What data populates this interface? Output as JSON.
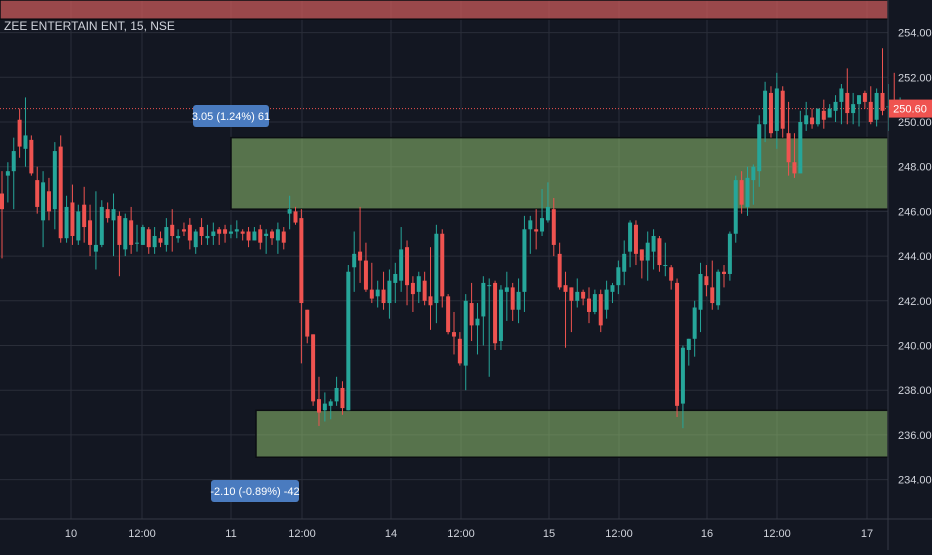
{
  "header": {
    "symbol_title": "ZEE ENTERTAIN ENT, 15, NSE"
  },
  "annotations": {
    "upper_measure": "3.05 (1.24%) 61",
    "lower_measure": "-2.10 (-0.89%) -42"
  },
  "colors": {
    "background": "#131722",
    "grid": "#2a2e39",
    "up_candle": "#26a69a",
    "down_candle": "#ef5350",
    "zone_fill": "#8fbf6f",
    "top_zone_fill": "#c85a5a",
    "measure_label_bg": "#4a7bbf",
    "price_line": "#ef5350",
    "axis_text": "#d1d4dc"
  },
  "chart_data": {
    "type": "candlestick",
    "title": "ZEE ENTERTAIN ENT, 15, NSE",
    "interval": "15",
    "exchange": "NSE",
    "xlabel": "",
    "ylabel": "",
    "ylim": [
      233.0,
      255.0
    ],
    "y_ticks": [
      "234.00",
      "236.00",
      "238.00",
      "240.00",
      "242.00",
      "244.00",
      "246.00",
      "248.00",
      "250.00",
      "252.00",
      "254.00"
    ],
    "x_ticks": [
      "10",
      "12:00",
      "11",
      "12:00",
      "14",
      "12:00",
      "15",
      "12:00",
      "16",
      "12:00",
      "17"
    ],
    "last_price": "250.60",
    "grid": true,
    "zones": [
      {
        "name": "supply-zone",
        "from": 246.1,
        "to": 249.3
      },
      {
        "name": "demand-zone",
        "from": 235.0,
        "to": 237.1
      },
      {
        "name": "top-zone",
        "from": 254.6,
        "to": 256.0
      }
    ],
    "measures": [
      {
        "label": "3.05 (1.24%) 61",
        "high": 249.25,
        "low": 246.2
      },
      {
        "label": "-2.10 (-0.89%) -42",
        "high": 237.1,
        "low": 235.0
      }
    ],
    "candles": [
      [
        246.8,
        247.8,
        243.9,
        246.1
      ],
      [
        247.6,
        248.2,
        246.4,
        247.8
      ],
      [
        247.8,
        249.3,
        246.1,
        248.7
      ],
      [
        250.1,
        250.6,
        248.4,
        248.9
      ],
      [
        248.8,
        251.1,
        248.0,
        249.4
      ],
      [
        249.2,
        249.4,
        247.6,
        247.7
      ],
      [
        247.4,
        248.0,
        245.9,
        246.2
      ],
      [
        245.6,
        247.8,
        244.4,
        247.3
      ],
      [
        246.9,
        247.5,
        245.6,
        246.0
      ],
      [
        246.1,
        249.1,
        245.2,
        248.7
      ],
      [
        248.9,
        249.4,
        244.6,
        244.8
      ],
      [
        244.8,
        246.7,
        244.6,
        246.2
      ],
      [
        246.4,
        247.2,
        244.5,
        244.9
      ],
      [
        244.7,
        246.3,
        244.5,
        246.0
      ],
      [
        246.3,
        247.1,
        244.6,
        245.3
      ],
      [
        245.6,
        246.3,
        244.0,
        244.5
      ],
      [
        244.2,
        246.9,
        243.4,
        244.5
      ],
      [
        244.5,
        246.5,
        244.4,
        246.2
      ],
      [
        246.1,
        246.4,
        245.5,
        245.7
      ],
      [
        245.6,
        246.8,
        244.0,
        246.1
      ],
      [
        245.8,
        246.0,
        243.1,
        244.5
      ],
      [
        244.3,
        245.9,
        244.0,
        245.7
      ],
      [
        245.6,
        246.2,
        244.1,
        244.5
      ],
      [
        244.6,
        245.4,
        244.2,
        244.6
      ],
      [
        244.5,
        245.4,
        244.5,
        245.3
      ],
      [
        245.2,
        245.3,
        244.1,
        244.4
      ],
      [
        244.4,
        245.3,
        244.1,
        244.9
      ],
      [
        244.8,
        245.1,
        244.4,
        244.6
      ],
      [
        244.5,
        245.7,
        244.2,
        245.3
      ],
      [
        245.4,
        246.1,
        244.2,
        244.9
      ],
      [
        244.8,
        245.2,
        244.6,
        244.9
      ],
      [
        245.2,
        245.5,
        244.9,
        245.1
      ],
      [
        245.4,
        245.7,
        244.3,
        244.7
      ],
      [
        244.4,
        245.2,
        244.1,
        245.1
      ],
      [
        245.3,
        245.7,
        244.5,
        244.9
      ],
      [
        244.8,
        245.4,
        244.5,
        244.9
      ],
      [
        244.9,
        245.5,
        244.5,
        245.1
      ],
      [
        245.2,
        245.3,
        244.5,
        245.0
      ],
      [
        245.2,
        245.4,
        244.6,
        245.0
      ],
      [
        245.0,
        245.4,
        244.8,
        245.1
      ],
      [
        245.1,
        245.6,
        244.8,
        245.2
      ],
      [
        245.1,
        245.2,
        244.7,
        245.0
      ],
      [
        245.1,
        245.3,
        244.4,
        244.7
      ],
      [
        244.7,
        245.3,
        244.7,
        245.1
      ],
      [
        245.2,
        245.4,
        244.3,
        244.6
      ],
      [
        244.9,
        245.2,
        244.1,
        245.0
      ],
      [
        245.1,
        245.2,
        244.5,
        244.8
      ],
      [
        244.7,
        245.5,
        244.1,
        245.2
      ],
      [
        245.1,
        245.3,
        244.3,
        244.6
      ],
      [
        245.9,
        246.7,
        245.2,
        246.1
      ],
      [
        246.0,
        246.2,
        245.4,
        245.5
      ],
      [
        245.7,
        246.1,
        239.2,
        241.9
      ],
      [
        241.6,
        241.6,
        240.1,
        240.4
      ],
      [
        240.5,
        240.5,
        237.3,
        237.5
      ],
      [
        237.6,
        238.6,
        236.4,
        237.0
      ],
      [
        237.1,
        237.9,
        236.6,
        237.4
      ],
      [
        237.3,
        237.6,
        236.7,
        237.5
      ],
      [
        237.5,
        238.6,
        237.3,
        238.1
      ],
      [
        238.1,
        238.4,
        236.9,
        237.2
      ],
      [
        237.1,
        243.6,
        237.1,
        243.3
      ],
      [
        243.5,
        245.1,
        242.4,
        244.1
      ],
      [
        244.2,
        246.2,
        242.8,
        243.8
      ],
      [
        243.8,
        244.6,
        242.4,
        242.5
      ],
      [
        242.5,
        243.7,
        241.9,
        242.1
      ],
      [
        242.2,
        242.9,
        241.7,
        242.5
      ],
      [
        242.5,
        243.3,
        241.6,
        241.9
      ],
      [
        241.9,
        243.4,
        241.2,
        242.9
      ],
      [
        242.8,
        243.7,
        241.9,
        243.2
      ],
      [
        242.9,
        245.3,
        242.4,
        244.3
      ],
      [
        244.4,
        244.7,
        241.8,
        242.7
      ],
      [
        242.8,
        243.1,
        241.5,
        242.3
      ],
      [
        242.4,
        243.3,
        241.9,
        243.1
      ],
      [
        242.9,
        243.3,
        241.8,
        242.0
      ],
      [
        242.2,
        244.4,
        240.7,
        241.8
      ],
      [
        241.9,
        245.4,
        241.0,
        245.0
      ],
      [
        245.0,
        245.2,
        241.7,
        242.2
      ],
      [
        242.2,
        242.3,
        240.5,
        240.6
      ],
      [
        240.6,
        241.5,
        239.6,
        240.4
      ],
      [
        240.3,
        240.6,
        239.1,
        239.2
      ],
      [
        239.1,
        242.3,
        238.0,
        242.0
      ],
      [
        241.9,
        242.8,
        240.2,
        240.9
      ],
      [
        240.9,
        241.9,
        239.6,
        241.2
      ],
      [
        241.3,
        243.1,
        240.0,
        242.8
      ],
      [
        242.7,
        243.0,
        238.6,
        242.7
      ],
      [
        242.8,
        242.9,
        239.8,
        240.1
      ],
      [
        240.2,
        242.7,
        239.8,
        242.5
      ],
      [
        242.4,
        243.3,
        241.1,
        242.6
      ],
      [
        242.6,
        242.8,
        241.1,
        241.6
      ],
      [
        241.6,
        243.0,
        241.0,
        242.4
      ],
      [
        242.4,
        245.8,
        241.5,
        245.2
      ],
      [
        245.2,
        245.8,
        244.1,
        245.6
      ],
      [
        245.2,
        246.1,
        244.3,
        245.1
      ],
      [
        245.1,
        247.0,
        244.9,
        245.7
      ],
      [
        245.6,
        247.3,
        245.5,
        246.2
      ],
      [
        246.1,
        246.6,
        244.0,
        244.5
      ],
      [
        244.1,
        244.6,
        242.5,
        242.6
      ],
      [
        242.7,
        243.3,
        239.9,
        242.4
      ],
      [
        242.6,
        242.6,
        240.6,
        242.0
      ],
      [
        242.0,
        243.0,
        241.7,
        242.4
      ],
      [
        242.4,
        242.5,
        241.8,
        242.1
      ],
      [
        242.1,
        242.6,
        241.0,
        241.5
      ],
      [
        241.5,
        242.5,
        241.4,
        242.3
      ],
      [
        242.3,
        242.5,
        240.6,
        240.9
      ],
      [
        241.6,
        242.9,
        241.2,
        242.5
      ],
      [
        242.4,
        242.8,
        241.9,
        242.7
      ],
      [
        242.7,
        243.8,
        242.3,
        243.5
      ],
      [
        243.3,
        244.7,
        242.7,
        244.1
      ],
      [
        244.2,
        245.6,
        243.5,
        245.5
      ],
      [
        245.4,
        245.6,
        243.6,
        244.1
      ],
      [
        244.3,
        244.3,
        243.0,
        243.8
      ],
      [
        243.8,
        245.1,
        242.9,
        244.6
      ],
      [
        244.2,
        245.2,
        243.4,
        244.9
      ],
      [
        244.8,
        244.9,
        243.3,
        243.6
      ],
      [
        243.6,
        244.6,
        243.1,
        243.6
      ],
      [
        243.5,
        243.6,
        242.5,
        242.9
      ],
      [
        242.8,
        243.0,
        236.8,
        237.3
      ],
      [
        237.4,
        240.0,
        236.3,
        239.9
      ],
      [
        239.8,
        240.3,
        239.1,
        240.3
      ],
      [
        240.3,
        242.0,
        239.5,
        241.7
      ],
      [
        241.6,
        243.7,
        240.6,
        243.2
      ],
      [
        243.1,
        243.6,
        242.2,
        242.7
      ],
      [
        242.6,
        243.8,
        241.6,
        241.9
      ],
      [
        241.8,
        243.4,
        241.6,
        243.3
      ],
      [
        243.3,
        243.6,
        242.6,
        243.2
      ],
      [
        243.2,
        245.1,
        242.9,
        245.0
      ],
      [
        245.0,
        247.6,
        244.6,
        247.4
      ],
      [
        247.4,
        247.8,
        245.9,
        246.3
      ],
      [
        246.2,
        248.0,
        245.8,
        247.5
      ],
      [
        247.4,
        248.1,
        246.3,
        248.0
      ],
      [
        247.8,
        250.3,
        247.1,
        249.9
      ],
      [
        249.9,
        251.8,
        249.1,
        251.4
      ],
      [
        251.3,
        251.6,
        249.3,
        249.5
      ],
      [
        249.6,
        252.2,
        248.8,
        251.5
      ],
      [
        251.4,
        251.6,
        249.3,
        249.7
      ],
      [
        249.5,
        250.9,
        247.6,
        248.2
      ],
      [
        248.2,
        249.5,
        247.5,
        247.7
      ],
      [
        247.7,
        250.5,
        247.7,
        250.0
      ],
      [
        249.9,
        250.9,
        249.6,
        250.3
      ],
      [
        250.2,
        250.6,
        249.7,
        249.9
      ],
      [
        249.9,
        250.6,
        249.8,
        250.6
      ],
      [
        250.5,
        251.0,
        249.7,
        250.1
      ],
      [
        250.2,
        250.8,
        250.2,
        250.6
      ],
      [
        250.5,
        251.2,
        250.0,
        250.9
      ],
      [
        250.9,
        251.7,
        249.9,
        251.5
      ],
      [
        251.3,
        252.4,
        249.9,
        250.4
      ],
      [
        250.4,
        251.3,
        249.9,
        250.8
      ],
      [
        250.8,
        251.2,
        249.8,
        251.2
      ],
      [
        251.3,
        251.4,
        250.6,
        250.9
      ],
      [
        250.9,
        251.6,
        249.9,
        250.0
      ],
      [
        250.1,
        251.5,
        249.8,
        251.3
      ],
      [
        251.3,
        253.3,
        250.3,
        250.5
      ],
      [
        250.7,
        251.7,
        249.6,
        250.7
      ],
      [
        250.6,
        252.2,
        250.3,
        250.5
      ],
      [
        250.5,
        251.1,
        250.4,
        250.6
      ]
    ]
  }
}
